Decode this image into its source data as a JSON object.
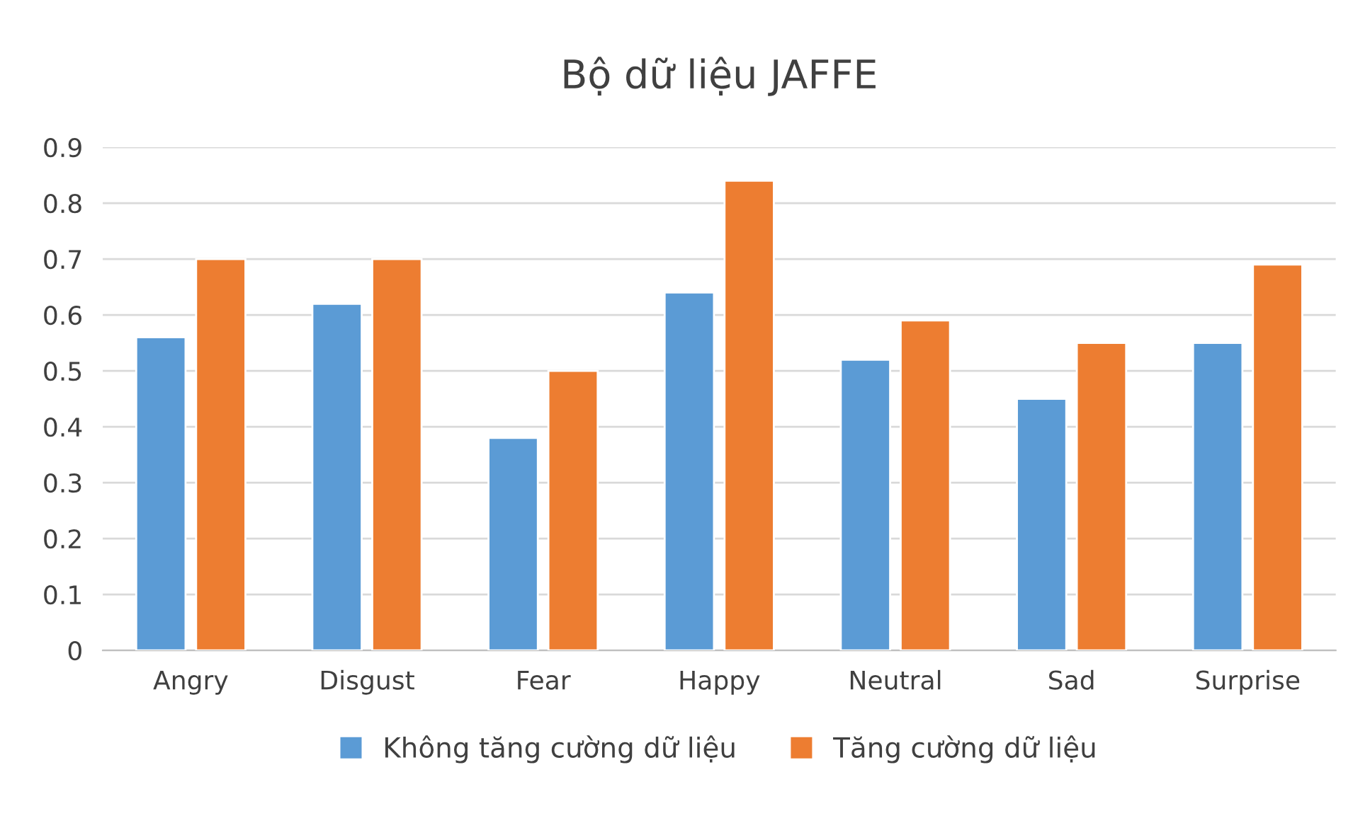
{
  "chart_data": {
    "type": "bar",
    "title": "Bộ dữ liệu JAFFE",
    "categories": [
      "Angry",
      "Disgust",
      "Fear",
      "Happy",
      "Neutral",
      "Sad",
      "Surprise"
    ],
    "series": [
      {
        "name": "Không tăng cường dữ liệu",
        "color": "#5b9bd5",
        "values": [
          0.56,
          0.62,
          0.38,
          0.64,
          0.52,
          0.45,
          0.55
        ]
      },
      {
        "name": "Tăng cường dữ liệu",
        "color": "#ed7d31",
        "values": [
          0.7,
          0.7,
          0.5,
          0.84,
          0.59,
          0.55,
          0.69
        ]
      }
    ],
    "ylim": [
      0,
      0.9
    ],
    "yticks": [
      0,
      {
        "value": 0.1,
        "label": "0.1"
      },
      {
        "value": 0.2,
        "label": "0.2"
      },
      {
        "value": 0.3,
        "label": "0.3"
      },
      {
        "value": 0.4,
        "label": "0.4"
      },
      {
        "value": 0.5,
        "label": "0.5"
      },
      {
        "value": 0.6,
        "label": "0.6"
      },
      {
        "value": 0.7,
        "label": "0.7"
      },
      {
        "value": 0.8,
        "label": "0.8"
      },
      {
        "value": 0.9,
        "label": "0.9"
      }
    ],
    "grid": "y",
    "legend": "bottom"
  }
}
